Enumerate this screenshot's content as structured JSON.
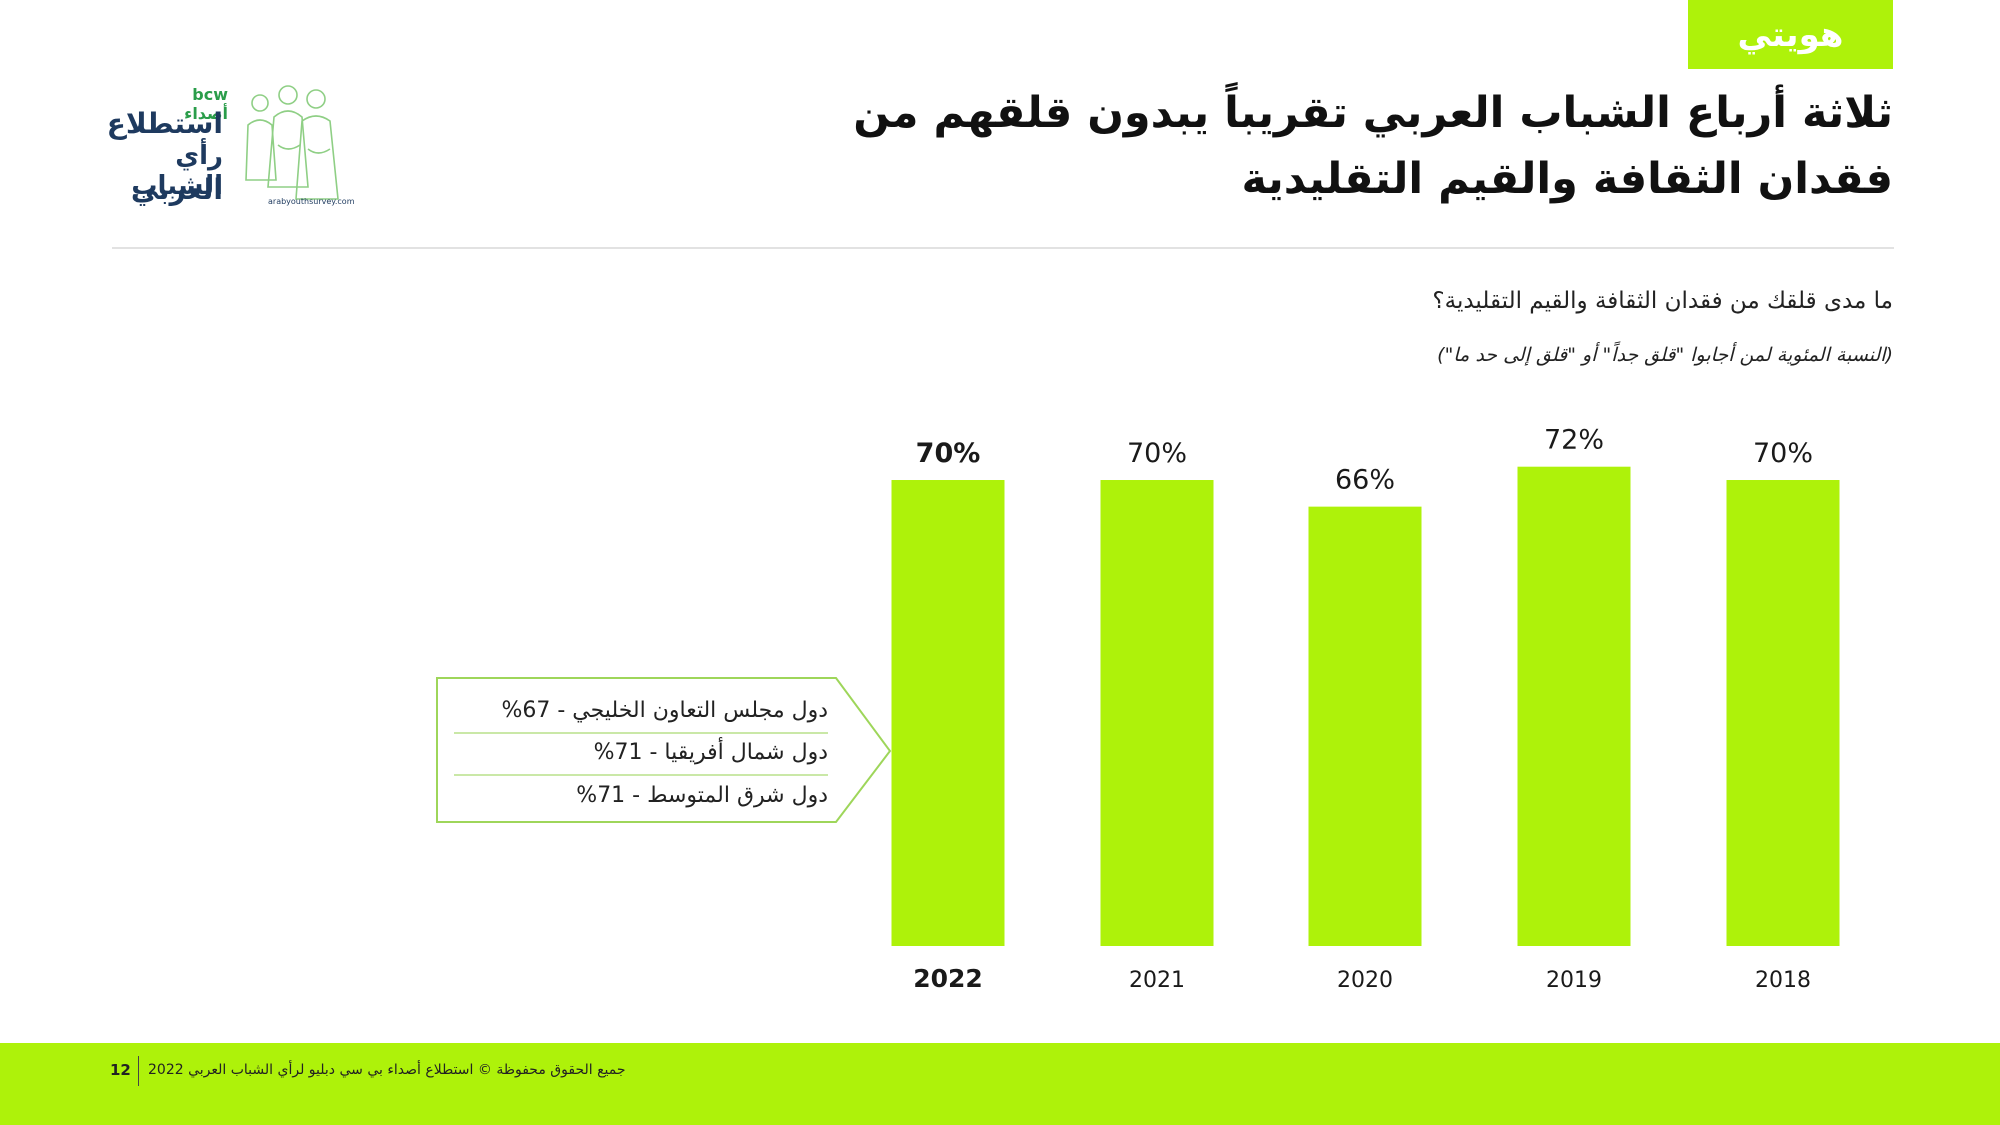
{
  "section_tag": "هويتي",
  "title": "ثلاثة أرباع الشباب العربي تقريباً يبدون قلقهم من فقدان الثقافة والقيم التقليدية",
  "logo": {
    "brand": "bcw أصداء",
    "line1": "استطلاع",
    "line2": "رأي الشباب",
    "line3": "العربي",
    "url": "arabyouthsurvey.com"
  },
  "question": "ما مدى قلقك من فقدان الثقافة والقيم التقليدية؟",
  "note": "(النسبة المئوية لمن أجابوا \"قلق جداً\" أو \"قلق إلى حد ما\")",
  "colors": {
    "accent": "#aef20a",
    "bar": "#aef20a",
    "callout_border": "#9ed65a"
  },
  "chart_data": {
    "type": "bar",
    "categories": [
      "2022",
      "2021",
      "2020",
      "2019",
      "2018"
    ],
    "values": [
      70,
      70,
      66,
      72,
      70
    ],
    "value_labels": [
      "70%",
      "70%",
      "66%",
      "72%",
      "70%"
    ],
    "highlight_category": "2022",
    "ylim": [
      0,
      100
    ]
  },
  "callout": {
    "items": [
      "دول مجلس التعاون الخليجي - 67%",
      "دول شمال أفريقيا  - 71%",
      "دول شرق المتوسط  - 71%"
    ]
  },
  "footer": {
    "page_number": "12",
    "text": "جميع الحقوق محفوظة © استطلاع أصداء بي سي دبليو لرأي الشباب العربي 2022"
  }
}
